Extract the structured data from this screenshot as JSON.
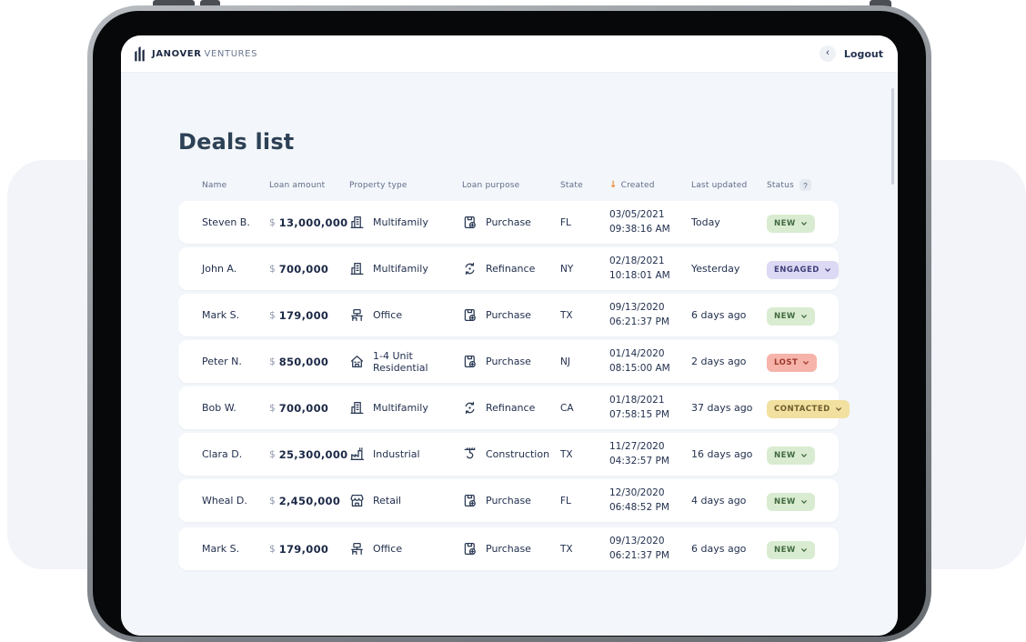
{
  "brand": {
    "bold": "JANOVER",
    "light": "VENTURES"
  },
  "header": {
    "logout": "Logout",
    "back_icon": "‹"
  },
  "page": {
    "title": "Deals list"
  },
  "colors": {
    "sort_accent": "#f08a2f"
  },
  "table": {
    "columns": {
      "name": "Name",
      "loan_amount": "Loan amount",
      "property_type": "Property type",
      "loan_purpose": "Loan purpose",
      "created": "Created",
      "state": "State",
      "last_updated": "Last updated",
      "status": "Status",
      "status_help": "?",
      "sort_icon": "↓"
    },
    "currency_symbol": "$",
    "statuses": {
      "new": {
        "label": "NEW",
        "bg": "#d9ecd1",
        "color": "#41693f"
      },
      "engaged": {
        "label": "ENGAGED",
        "bg": "#dcd9f4",
        "color": "#3f3f7a"
      },
      "lost": {
        "label": "LOST",
        "bg": "#f6b3a9",
        "color": "#9c372c"
      },
      "contacted": {
        "label": "CONTACTED",
        "bg": "#f2e0a0",
        "color": "#6b5d2b"
      }
    },
    "rows": [
      {
        "name": "Steven B.",
        "amount": "13,000,000",
        "property": "Multifamily",
        "property_icon": "multifamily-icon",
        "purpose": "Purchase",
        "purpose_icon": "purchase-icon",
        "state": "FL",
        "created_date": "03/05/2021",
        "created_time": "09:38:16 AM",
        "last_updated": "Today",
        "status_key": "new"
      },
      {
        "name": "John A.",
        "amount": "700,000",
        "property": "Multifamily",
        "property_icon": "multifamily-icon",
        "purpose": "Refinance",
        "purpose_icon": "refinance-icon",
        "state": "NY",
        "created_date": "02/18/2021",
        "created_time": "10:18:01 AM",
        "last_updated": "Yesterday",
        "status_key": "engaged"
      },
      {
        "name": "Mark S.",
        "amount": "179,000",
        "property": "Office",
        "property_icon": "office-icon",
        "purpose": "Purchase",
        "purpose_icon": "purchase-icon",
        "state": "TX",
        "created_date": "09/13/2020",
        "created_time": "06:21:37 PM",
        "last_updated": "6 days ago",
        "status_key": "new"
      },
      {
        "name": "Peter N.",
        "amount": "850,000",
        "property": "1-4 Unit Residential",
        "property_icon": "residential-icon",
        "purpose": "Purchase",
        "purpose_icon": "purchase-icon",
        "state": "NJ",
        "created_date": "01/14/2020",
        "created_time": "08:15:00 AM",
        "last_updated": "2 days ago",
        "status_key": "lost"
      },
      {
        "name": "Bob W.",
        "amount": "700,000",
        "property": "Multifamily",
        "property_icon": "multifamily-icon",
        "purpose": "Refinance",
        "purpose_icon": "refinance-icon",
        "state": "CA",
        "created_date": "01/18/2021",
        "created_time": "07:58:15 PM",
        "last_updated": "37 days ago",
        "status_key": "contacted"
      },
      {
        "name": "Clara D.",
        "amount": "25,300,000",
        "property": "Industrial",
        "property_icon": "industrial-icon",
        "purpose": "Construction",
        "purpose_icon": "construction-icon",
        "state": "TX",
        "created_date": "11/27/2020",
        "created_time": "04:32:57 PM",
        "last_updated": "16 days ago",
        "status_key": "new"
      },
      {
        "name": "Wheal D.",
        "amount": "2,450,000",
        "property": "Retail",
        "property_icon": "retail-icon",
        "purpose": "Purchase",
        "purpose_icon": "purchase-icon",
        "state": "FL",
        "created_date": "12/30/2020",
        "created_time": "06:48:52 PM",
        "last_updated": "4 days ago",
        "status_key": "new"
      },
      {
        "name": "Mark S.",
        "amount": "179,000",
        "property": "Office",
        "property_icon": "office-icon",
        "purpose": "Purchase",
        "purpose_icon": "purchase-icon",
        "state": "TX",
        "created_date": "09/13/2020",
        "created_time": "06:21:37 PM",
        "last_updated": "6 days ago",
        "status_key": "new"
      }
    ]
  }
}
